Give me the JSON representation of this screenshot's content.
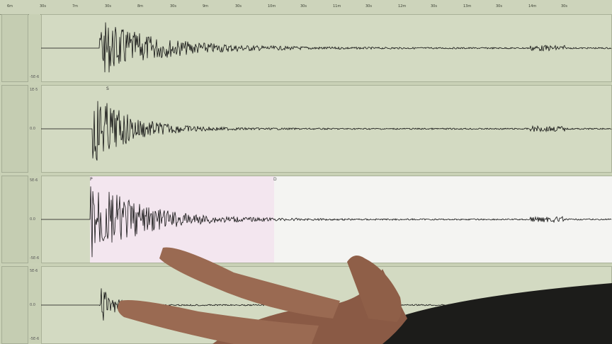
{
  "time_axis": {
    "labels": [
      "6m",
      "30s",
      "7m",
      "30s",
      "8m",
      "30s",
      "9m",
      "30s",
      "10m",
      "30s",
      "11m",
      "30s",
      "12m",
      "30s",
      "13m",
      "30s",
      "14m",
      "30s"
    ]
  },
  "channels": [
    {
      "scale_top": "",
      "scale_mid": "",
      "scale_bottom": "-5E-6",
      "highlight": false
    },
    {
      "scale_top": "1E-5",
      "scale_mid": "0.0",
      "scale_bottom": "",
      "highlight": false,
      "phase_label": "S"
    },
    {
      "scale_top": "5E-6",
      "scale_mid": "0.0",
      "scale_bottom": "-5E-6",
      "highlight": true,
      "phase_label": "P",
      "marker_label": "D"
    },
    {
      "scale_top": "5E-6",
      "scale_mid": "0.0",
      "scale_bottom": "-5E-6",
      "highlight": false
    }
  ],
  "colors": {
    "screen": "#d3dac2",
    "highlight": "#f3e6ef",
    "trace": "#111111",
    "skin": "#8a5a45",
    "sleeve": "#1c1c1a"
  }
}
